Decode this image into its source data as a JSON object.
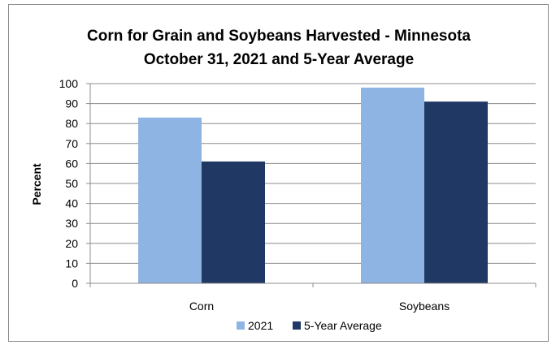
{
  "chart_data": {
    "type": "bar",
    "title": [
      "Corn for Grain and Soybeans Harvested - Minnesota",
      "October 31, 2021 and 5-Year Average"
    ],
    "xlabel": "",
    "ylabel": "Percent",
    "categories": [
      "Corn",
      "Soybeans"
    ],
    "series": [
      {
        "name": "2021",
        "values": [
          83,
          98
        ],
        "color": "#8eb4e3"
      },
      {
        "name": "5-Year Average",
        "values": [
          61,
          91
        ],
        "color": "#1f3864"
      }
    ],
    "ylim": [
      0,
      100
    ],
    "yticks": [
      "0",
      "10",
      "20",
      "30",
      "40",
      "50",
      "60",
      "70",
      "80",
      "90",
      "100"
    ],
    "grid": true,
    "legend_position": "bottom"
  }
}
